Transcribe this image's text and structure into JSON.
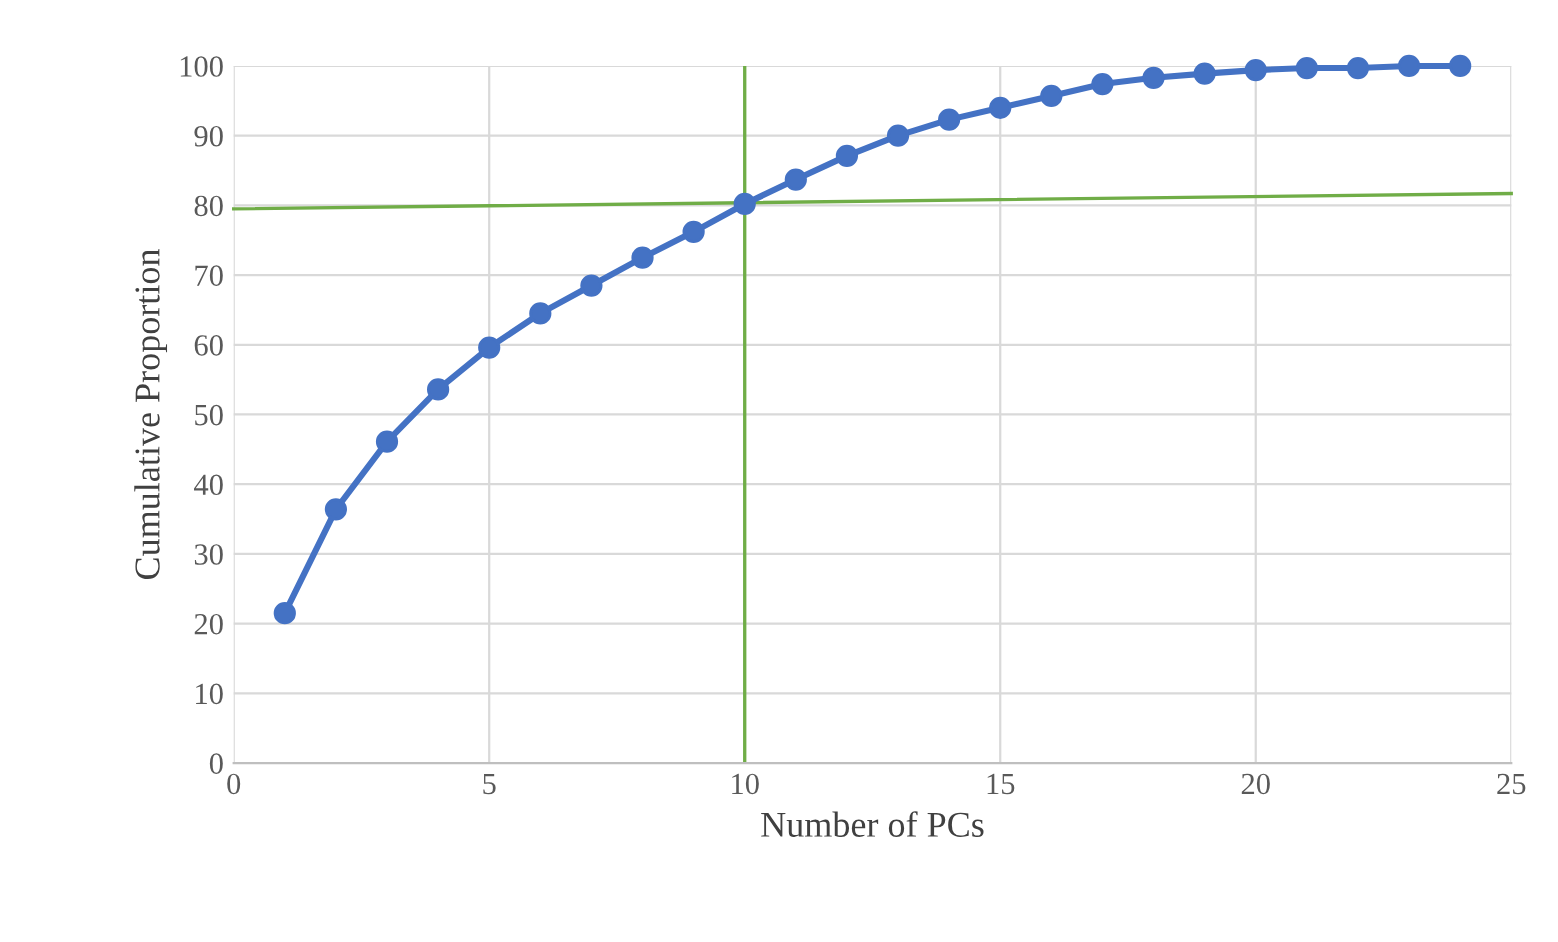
{
  "chart_data": {
    "type": "line",
    "xlabel": "Number of PCs",
    "ylabel": "Cumulative Proportion",
    "x": [
      1,
      2,
      3,
      4,
      5,
      6,
      7,
      8,
      9,
      10,
      11,
      12,
      13,
      14,
      15,
      16,
      17,
      18,
      19,
      20,
      21,
      22,
      23,
      24
    ],
    "series": [
      {
        "color": "#4472c4",
        "marker": "circle",
        "values": [
          21.5,
          36.4,
          46.1,
          53.6,
          59.6,
          64.5,
          68.5,
          72.5,
          76.2,
          80.2,
          83.7,
          87.1,
          90.0,
          92.3,
          94.0,
          95.7,
          97.4,
          98.3,
          98.9,
          99.4,
          99.7,
          99.7,
          100,
          100
        ]
      },
      {
        "color": "#70ad47",
        "marker": "none",
        "x": [
          0,
          25
        ],
        "values": [
          79.5,
          81.7
        ]
      }
    ],
    "ref_lines": [
      {
        "axis": "x",
        "value": 10,
        "color": "#70ad47"
      }
    ],
    "xlim": [
      0,
      25
    ],
    "xticks": [
      0,
      5,
      10,
      15,
      20,
      25
    ],
    "ylim": [
      0,
      100
    ],
    "yticks": [
      0,
      10,
      20,
      30,
      40,
      50,
      60,
      70,
      80,
      90,
      100
    ],
    "grid": true
  }
}
